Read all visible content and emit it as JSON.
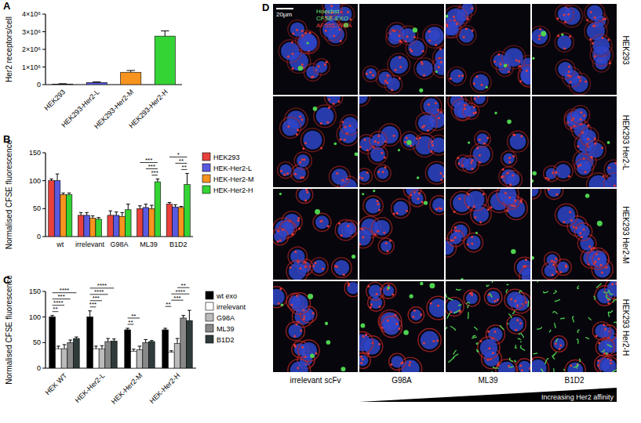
{
  "chart_data": [
    {
      "type": "bar",
      "title": "A",
      "y_label": "Her2 receptors/cell",
      "categories": [
        "HEK293",
        "HEK293-Her2-L",
        "HEK293-Her2-M",
        "HEK293-Her2-H"
      ],
      "values": [
        30000,
        120000,
        700000,
        2750000
      ],
      "errors": [
        20000,
        30000,
        100000,
        300000
      ],
      "colors": [
        "#e8413c",
        "#5a5ae0",
        "#f7931e",
        "#35d435"
      ],
      "ylim": [
        0,
        4000000
      ],
      "yticks": [
        0,
        {
          "value": 1000000,
          "label": "1×10⁶"
        },
        {
          "value": 2000000,
          "label": "2×10⁶"
        },
        {
          "value": 3000000,
          "label": "3×10⁶"
        },
        {
          "value": 4000000,
          "label": "4×10⁶"
        }
      ],
      "grid": false
    },
    {
      "type": "bar",
      "title": "B",
      "y_label": "Normalised CFSE fluorescence",
      "categories": [
        "wt",
        "irrelevant",
        "G98A",
        "ML39",
        "B1D2"
      ],
      "series": [
        {
          "name": "HEK293",
          "color": "#e8413c",
          "values": [
            100,
            38,
            38,
            50,
            58
          ],
          "errors": [
            3,
            5,
            8,
            5,
            3
          ]
        },
        {
          "name": "HEK-Her2-L",
          "color": "#5a5ae0",
          "values": [
            100,
            38,
            38,
            52,
            53
          ],
          "errors": [
            12,
            5,
            6,
            6,
            4
          ]
        },
        {
          "name": "HEK-Her2-M",
          "color": "#f7931e",
          "values": [
            75,
            33,
            36,
            50,
            52
          ],
          "errors": [
            3,
            4,
            7,
            6,
            2
          ]
        },
        {
          "name": "HEK-Her2-H",
          "color": "#35d435",
          "values": [
            75,
            31,
            48,
            98,
            93
          ],
          "errors": [
            3,
            3,
            10,
            5,
            20
          ]
        }
      ],
      "annotations": [
        {
          "text": "***",
          "category": 3,
          "from": 2,
          "to": 3
        },
        {
          "text": "***",
          "category": 3,
          "from": 1,
          "to": 3
        },
        {
          "text": "***",
          "category": 3,
          "from": 0,
          "to": 3
        },
        {
          "text": "**",
          "category": 4,
          "from": 2,
          "to": 3
        },
        {
          "text": "**",
          "category": 4,
          "from": 1,
          "to": 3
        },
        {
          "text": "*",
          "category": 4,
          "from": 0,
          "to": 3
        }
      ],
      "ylim": [
        0,
        150
      ],
      "yticks": [
        0,
        50,
        100,
        150
      ],
      "grid": false,
      "legend": "right"
    },
    {
      "type": "bar",
      "title": "C",
      "y_label": "Normalised CFSE fluorescence",
      "categories": [
        "HEK WT",
        "HEK-Her2-L",
        "HEK-Her2-M",
        "HEK-Her2-H"
      ],
      "series": [
        {
          "name": "wt exo",
          "color": "#000000",
          "values": [
            100,
            100,
            75,
            75
          ],
          "errors": [
            3,
            12,
            3,
            3
          ]
        },
        {
          "name": "irrelevant",
          "color": "#ffffff",
          "values": [
            38,
            38,
            33,
            31
          ],
          "errors": [
            5,
            5,
            4,
            3
          ]
        },
        {
          "name": "G98A",
          "color": "#bbbbbb",
          "values": [
            38,
            38,
            36,
            48
          ],
          "errors": [
            8,
            6,
            7,
            10
          ]
        },
        {
          "name": "ML39",
          "color": "#888888",
          "values": [
            50,
            52,
            50,
            98
          ],
          "errors": [
            5,
            6,
            6,
            5
          ]
        },
        {
          "name": "B1D2",
          "color": "#2f3b3b",
          "values": [
            58,
            53,
            52,
            93
          ],
          "errors": [
            3,
            4,
            2,
            20
          ]
        }
      ],
      "annotations": [
        {
          "text": "**",
          "category": 0,
          "from": 0,
          "to": 1
        },
        {
          "text": "****",
          "category": 0,
          "from": 0,
          "to": 2
        },
        {
          "text": "***",
          "category": 0,
          "from": 0,
          "to": 3
        },
        {
          "text": "****",
          "category": 0,
          "from": 0,
          "to": 4
        },
        {
          "text": "***",
          "category": 1,
          "from": 0,
          "to": 1
        },
        {
          "text": "***",
          "category": 1,
          "from": 0,
          "to": 2
        },
        {
          "text": "****",
          "category": 1,
          "from": 0,
          "to": 3
        },
        {
          "text": "****",
          "category": 1,
          "from": 0,
          "to": 4
        },
        {
          "text": "**",
          "category": 2,
          "from": 0,
          "to": 1
        },
        {
          "text": "**",
          "category": 2,
          "from": 0,
          "to": 2
        },
        {
          "text": "**",
          "category": 3,
          "from": 0,
          "to": 1
        },
        {
          "text": "***",
          "category": 3,
          "from": 1,
          "to": 3
        },
        {
          "text": "****",
          "category": 3,
          "from": 1,
          "to": 4
        },
        {
          "text": "**",
          "category": 3,
          "from": 2,
          "to": 4
        }
      ],
      "ylim": [
        0,
        150
      ],
      "yticks": [
        0,
        50,
        100,
        150
      ],
      "grid": false,
      "legend": "right"
    }
  ],
  "panel_d": {
    "title": "D",
    "scale_bar": "20µm",
    "channels": [
      {
        "text": "Hoechst",
        "color": "#6fe06f"
      },
      {
        "text": "CFSE-EXO",
        "color": "#6fe06f"
      },
      {
        "text": "AF555-WGA",
        "color": "#e23a3a"
      }
    ],
    "columns": [
      "irrelevant scFv",
      "G98A",
      "ML39",
      "B1D2"
    ],
    "rows": [
      "HEK293",
      "HEK293 Her2-L",
      "HEK293 Her2-M",
      "HEK293 Her2-H"
    ],
    "arrow_label": "Increasing Her2 affinity"
  }
}
